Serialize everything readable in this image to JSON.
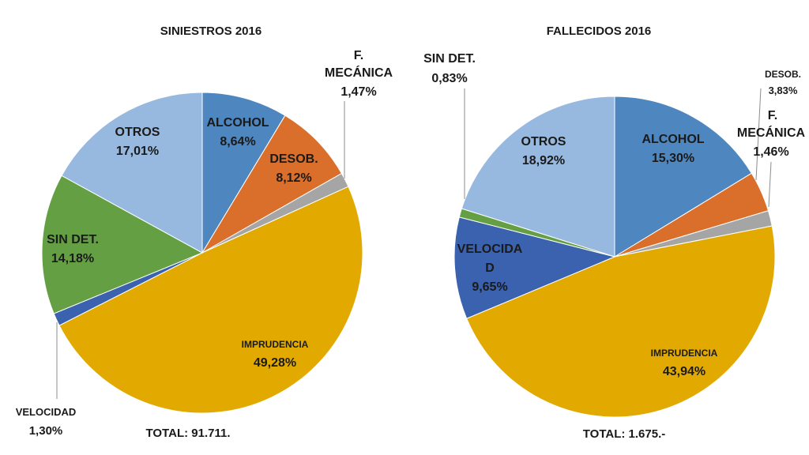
{
  "chart_data": [
    {
      "type": "pie",
      "title": "SINIESTROS 2016",
      "total": "TOTAL: 91.711.",
      "slices": [
        {
          "label": "ALCOHOL",
          "value": 8.64,
          "display": "8,64%",
          "color": "#4e86bf"
        },
        {
          "label": "DESOB.",
          "value": 8.12,
          "display": "8,12%",
          "color": "#d96f2b"
        },
        {
          "label": "F. MECÁNICA",
          "value": 1.47,
          "display": "1,47%",
          "color": "#a5a5a5"
        },
        {
          "label": "IMPRUDENCIA",
          "value": 49.28,
          "display": "49,28%",
          "color": "#e2aa00"
        },
        {
          "label": "VELOCIDAD",
          "value": 1.3,
          "display": "1,30%",
          "color": "#3a62ae"
        },
        {
          "label": "SIN DET.",
          "value": 14.18,
          "display": "14,18%",
          "color": "#64a043"
        },
        {
          "label": "OTROS",
          "value": 17.01,
          "display": "17,01%",
          "color": "#97b9e0"
        }
      ]
    },
    {
      "type": "pie",
      "title": "FALLECIDOS 2016",
      "total": "TOTAL: 1.675.-",
      "slices": [
        {
          "label": "ALCOHOL",
          "value": 15.3,
          "display": "15,30%",
          "color": "#4e86bf"
        },
        {
          "label": "DESOB.",
          "value": 3.83,
          "display": "3,83%",
          "color": "#d96f2b"
        },
        {
          "label": "F. MECÁNICA",
          "value": 1.46,
          "display": "1,46%",
          "color": "#a5a5a5"
        },
        {
          "label": "IMPRUDENCIA",
          "value": 43.94,
          "display": "43,94%",
          "color": "#e2aa00"
        },
        {
          "label": "VELOCIDA D",
          "value": 9.65,
          "display": "9,65%",
          "color": "#3a62ae"
        },
        {
          "label": "SIN DET.",
          "value": 0.83,
          "display": "0,83%",
          "color": "#64a043"
        },
        {
          "label": "OTROS",
          "value": 18.92,
          "display": "18,92%",
          "color": "#97b9e0"
        }
      ]
    }
  ]
}
